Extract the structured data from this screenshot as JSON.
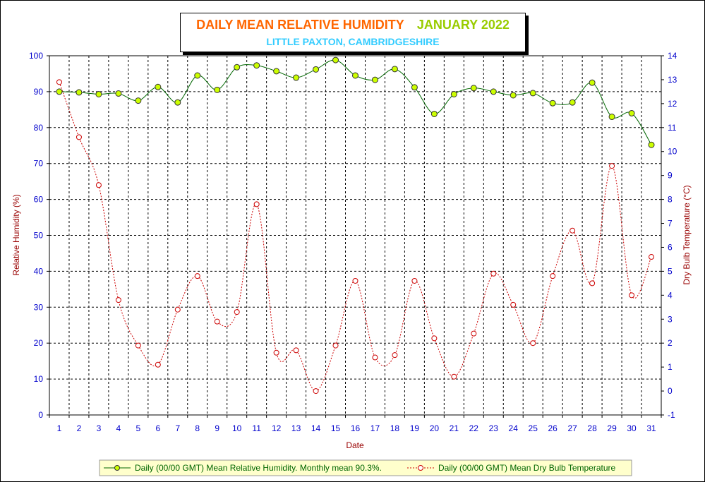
{
  "title": {
    "main": "DAILY MEAN RELATIVE HUMIDITY",
    "month": "JANUARY 2022",
    "subtitle": "LITTLE PAXTON, CAMBRIDGESHIRE"
  },
  "colors": {
    "title_main": "#ff6600",
    "title_month": "#99cc00",
    "subtitle": "#33ccff",
    "axis_text": "#0000cc",
    "axis_label": "#990000",
    "humidity_line": "#006600",
    "humidity_marker": "#ccff00",
    "temp_line": "#cc0000"
  },
  "legend": {
    "humidity": "Daily (00/00 GMT) Mean Relative Humidity. Monthly mean 90.3%.",
    "temperature": "Daily (00/00 GMT) Mean Dry Bulb Temperature"
  },
  "chart_data": {
    "type": "line",
    "xlabel": "Date",
    "ylabel": "Relative Humidity (%)",
    "y2label": "Dry Bulb Temperature (°C)",
    "ylim": [
      0,
      100
    ],
    "y2lim": [
      -1,
      14
    ],
    "y_ticks": [
      0,
      10,
      20,
      30,
      40,
      50,
      60,
      70,
      80,
      90,
      100
    ],
    "y2_ticks": [
      -1,
      0,
      1,
      2,
      3,
      4,
      5,
      6,
      7,
      8,
      9,
      10,
      11,
      12,
      13,
      14
    ],
    "x": [
      1,
      2,
      3,
      4,
      5,
      6,
      7,
      8,
      9,
      10,
      11,
      12,
      13,
      14,
      15,
      16,
      17,
      18,
      19,
      20,
      21,
      22,
      23,
      24,
      25,
      26,
      27,
      28,
      29,
      30,
      31
    ],
    "grid": true,
    "legend_position": "bottom",
    "series": [
      {
        "name": "Daily (00/00 GMT) Mean Relative Humidity. Monthly mean 90.3%.",
        "axis": "left",
        "values": [
          90.0,
          89.8,
          89.3,
          89.5,
          87.5,
          91.3,
          87.0,
          94.5,
          90.5,
          96.8,
          97.3,
          95.7,
          93.9,
          96.2,
          98.8,
          94.5,
          93.3,
          96.3,
          91.2,
          83.8,
          89.3,
          91.0,
          90.0,
          89.0,
          89.6,
          86.8,
          87.0,
          92.5,
          83.0,
          84.0,
          75.2
        ]
      },
      {
        "name": "Daily (00/00 GMT) Mean Dry Bulb Temperature",
        "axis": "right",
        "values": [
          12.9,
          10.6,
          8.6,
          3.8,
          1.9,
          1.1,
          3.4,
          4.8,
          2.9,
          3.3,
          7.8,
          1.6,
          1.7,
          0.0,
          1.9,
          4.6,
          1.4,
          1.5,
          4.6,
          2.2,
          0.6,
          2.4,
          4.9,
          3.6,
          2.0,
          4.8,
          6.7,
          4.5,
          9.4,
          4.0,
          5.6
        ]
      }
    ]
  }
}
